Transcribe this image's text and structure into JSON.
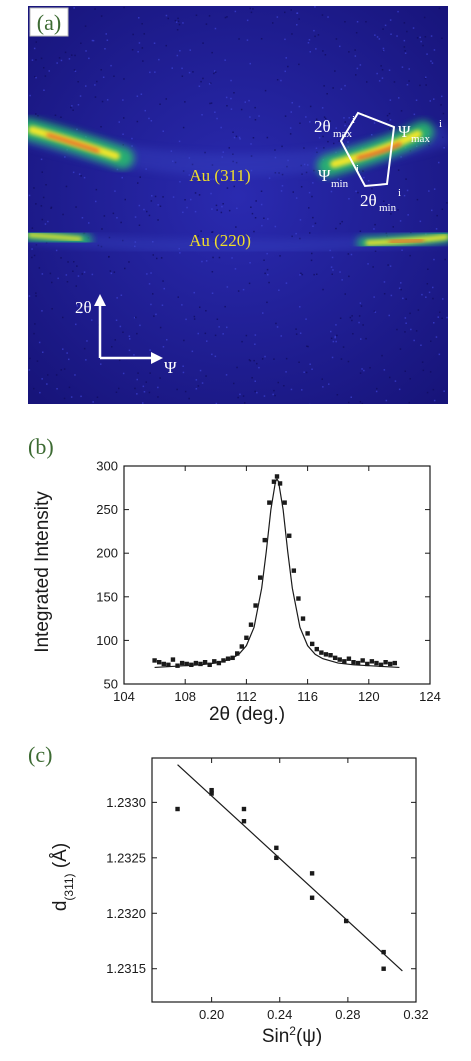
{
  "colors": {
    "detector_bg": "#1e1c8e",
    "ring_glow": "#25c46a",
    "ring_core": "#f0e62c",
    "ring_hot": "#e8402a",
    "label_yellow": "#f0de2a",
    "panel_letter": "#3d6b33",
    "ink": "#1a1a1a"
  },
  "panel_a": {
    "letter": "(a)",
    "ring_311": "Au (311)",
    "ring_220": "Au (220)",
    "axis_two_theta": "2θ",
    "axis_psi": "Ψ",
    "roi": {
      "two_theta_max": {
        "main": "2θ",
        "sub": "max",
        "sup": "i"
      },
      "psi_max": {
        "main": "Ψ",
        "sub": "max",
        "sup": "i"
      },
      "psi_min": {
        "main": "Ψ",
        "sub": "min",
        "sup": "i"
      },
      "two_theta_min": {
        "main": "2θ",
        "sub": "min",
        "sup": "i"
      }
    }
  },
  "chart_data": [
    {
      "panel": "(b)",
      "type": "scatter",
      "xlabel": "2θ (deg.)",
      "ylabel": "Integrated Intensity",
      "xlim": [
        104,
        124
      ],
      "ylim": [
        50,
        300
      ],
      "xticks": [
        104,
        108,
        112,
        116,
        120,
        124
      ],
      "yticks": [
        50,
        100,
        150,
        200,
        250,
        300
      ],
      "series": [
        {
          "style": "points",
          "x": [
            106.0,
            106.3,
            106.6,
            106.9,
            107.2,
            107.5,
            107.8,
            108.1,
            108.4,
            108.7,
            109.0,
            109.3,
            109.6,
            109.9,
            110.2,
            110.5,
            110.8,
            111.1,
            111.4,
            111.7,
            112.0,
            112.3,
            112.6,
            112.9,
            113.2,
            113.5,
            113.8,
            114.0,
            114.2,
            114.5,
            114.8,
            115.1,
            115.4,
            115.7,
            116.0,
            116.3,
            116.6,
            116.9,
            117.2,
            117.5,
            117.8,
            118.1,
            118.4,
            118.7,
            119.0,
            119.3,
            119.6,
            119.9,
            120.2,
            120.5,
            120.8,
            121.1,
            121.4,
            121.7
          ],
          "y": [
            77,
            75,
            73,
            72,
            78,
            71,
            74,
            73,
            72,
            74,
            73,
            75,
            72,
            76,
            74,
            77,
            79,
            80,
            85,
            93,
            103,
            118,
            140,
            172,
            215,
            258,
            282,
            288,
            280,
            258,
            220,
            180,
            148,
            125,
            108,
            96,
            90,
            86,
            84,
            83,
            80,
            78,
            76,
            79,
            75,
            74,
            77,
            73,
            76,
            74,
            72,
            75,
            73,
            74
          ]
        },
        {
          "style": "line",
          "x": [
            106.0,
            107.0,
            108.0,
            109.0,
            110.0,
            110.5,
            111.0,
            111.5,
            112.0,
            112.5,
            113.0,
            113.3,
            113.6,
            113.9,
            114.0,
            114.1,
            114.4,
            114.7,
            115.0,
            115.5,
            116.0,
            116.5,
            117.0,
            118.0,
            119.0,
            120.0,
            121.0,
            122.0
          ],
          "y": [
            69,
            70,
            71,
            72,
            74,
            76,
            79,
            84,
            94,
            115,
            160,
            202,
            250,
            282,
            285,
            282,
            250,
            202,
            160,
            115,
            94,
            84,
            79,
            74,
            72,
            71,
            70,
            69
          ]
        }
      ]
    },
    {
      "panel": "(c)",
      "type": "scatter",
      "xlabel": "Sin²(ψ)",
      "ylabel": "d(311) (Å)",
      "xlim": [
        0.165,
        0.32
      ],
      "ylim": [
        1.2312,
        1.2334
      ],
      "xticks": [
        0.2,
        0.24,
        0.28,
        0.32
      ],
      "yticks": [
        1.2315,
        1.232,
        1.2325,
        1.233
      ],
      "series": [
        {
          "style": "points",
          "x": [
            0.18,
            0.2,
            0.2,
            0.219,
            0.219,
            0.238,
            0.238,
            0.259,
            0.259,
            0.279,
            0.301,
            0.301
          ],
          "y": [
            1.23294,
            1.23311,
            1.23308,
            1.23294,
            1.23283,
            1.23259,
            1.2325,
            1.23236,
            1.23214,
            1.23193,
            1.23165,
            1.2315
          ]
        },
        {
          "style": "line",
          "x": [
            0.18,
            0.312
          ],
          "y": [
            1.23334,
            1.23148
          ]
        }
      ]
    }
  ]
}
